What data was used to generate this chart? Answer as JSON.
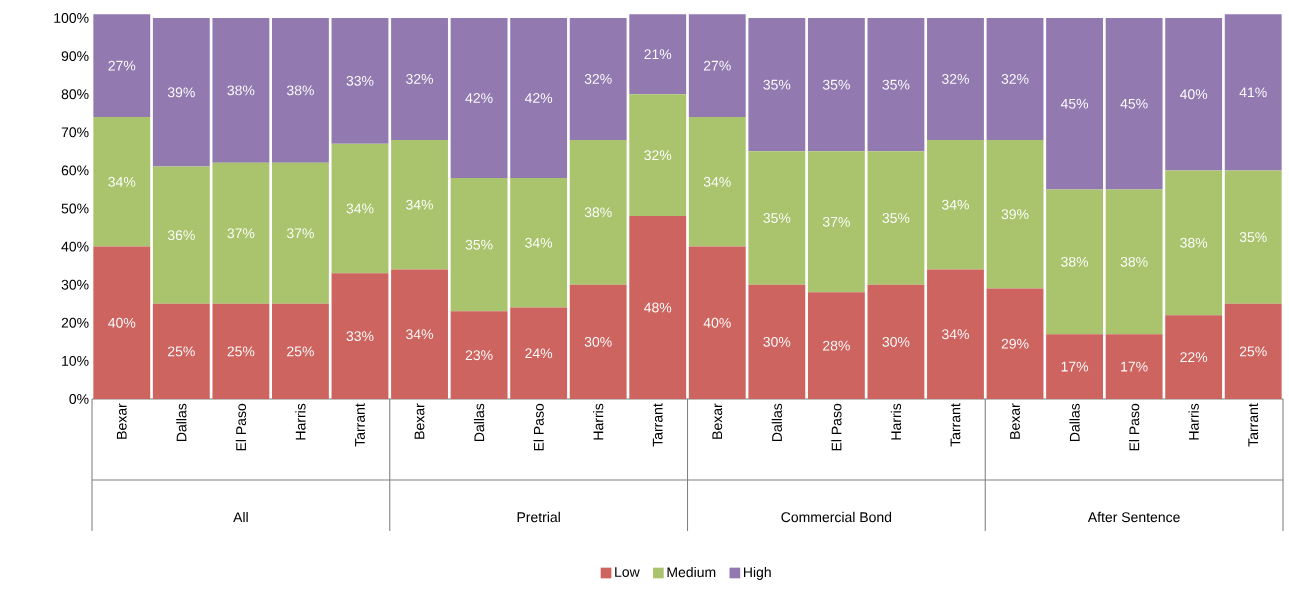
{
  "chart_data": {
    "type": "bar",
    "stacked": true,
    "categories": [
      "Bexar",
      "Dallas",
      "El Paso",
      "Harris",
      "Tarrant",
      "Bexar",
      "Dallas",
      "El Paso",
      "Harris",
      "Tarrant",
      "Bexar",
      "Dallas",
      "El Paso",
      "Harris",
      "Tarrant",
      "Bexar",
      "Dallas",
      "El Paso",
      "Harris",
      "Tarrant"
    ],
    "series": [
      {
        "name": "Low",
        "color": "#cd645f",
        "values": [
          40,
          25,
          25,
          25,
          33,
          34,
          23,
          24,
          30,
          48,
          40,
          30,
          28,
          30,
          34,
          29,
          17,
          17,
          22,
          25
        ],
        "value_labels": [
          "40%",
          "25%",
          "25%",
          "25%",
          "33%",
          "34%",
          "23%",
          "24%",
          "30%",
          "48%",
          "40%",
          "30%",
          "28%",
          "30%",
          "34%",
          "29%",
          "17%",
          "17%",
          "22%",
          "25%"
        ]
      },
      {
        "name": "Medium",
        "color": "#a9c46c",
        "values": [
          34,
          36,
          37,
          37,
          34,
          34,
          35,
          34,
          38,
          32,
          34,
          35,
          37,
          35,
          34,
          39,
          38,
          38,
          38,
          35
        ],
        "value_labels": [
          "34%",
          "36%",
          "37%",
          "37%",
          "34%",
          "34%",
          "35%",
          "34%",
          "38%",
          "32%",
          "34%",
          "35%",
          "37%",
          "35%",
          "34%",
          "39%",
          "38%",
          "38%",
          "38%",
          "35%"
        ]
      },
      {
        "name": "High",
        "color": "#9279b0",
        "values": [
          27,
          39,
          38,
          38,
          33,
          32,
          42,
          42,
          32,
          21,
          27,
          35,
          35,
          35,
          32,
          32,
          45,
          45,
          40,
          41
        ],
        "value_labels": [
          "27%",
          "39%",
          "38%",
          "38%",
          "33%",
          "32%",
          "42%",
          "42%",
          "32%",
          "21%",
          "27%",
          "35%",
          "35%",
          "35%",
          "32%",
          "32%",
          "45%",
          "45%",
          "40%",
          "41%"
        ]
      }
    ],
    "annotations": [
      "All",
      "Pretrial",
      "Commercial Bond",
      "After Sentence"
    ],
    "ylim": [
      0,
      101
    ],
    "yticks": [
      {
        "value": 0,
        "label": "0%"
      },
      {
        "value": 10,
        "label": "10%"
      },
      {
        "value": 20,
        "label": "20%"
      },
      {
        "value": 30,
        "label": "30%"
      },
      {
        "value": 40,
        "label": "40%"
      },
      {
        "value": 50,
        "label": "50%"
      },
      {
        "value": 60,
        "label": "60%"
      },
      {
        "value": 70,
        "label": "70%"
      },
      {
        "value": 80,
        "label": "80%"
      },
      {
        "value": 90,
        "label": "90%"
      },
      {
        "value": 100,
        "label": "100%"
      }
    ],
    "legend": "bottom"
  }
}
